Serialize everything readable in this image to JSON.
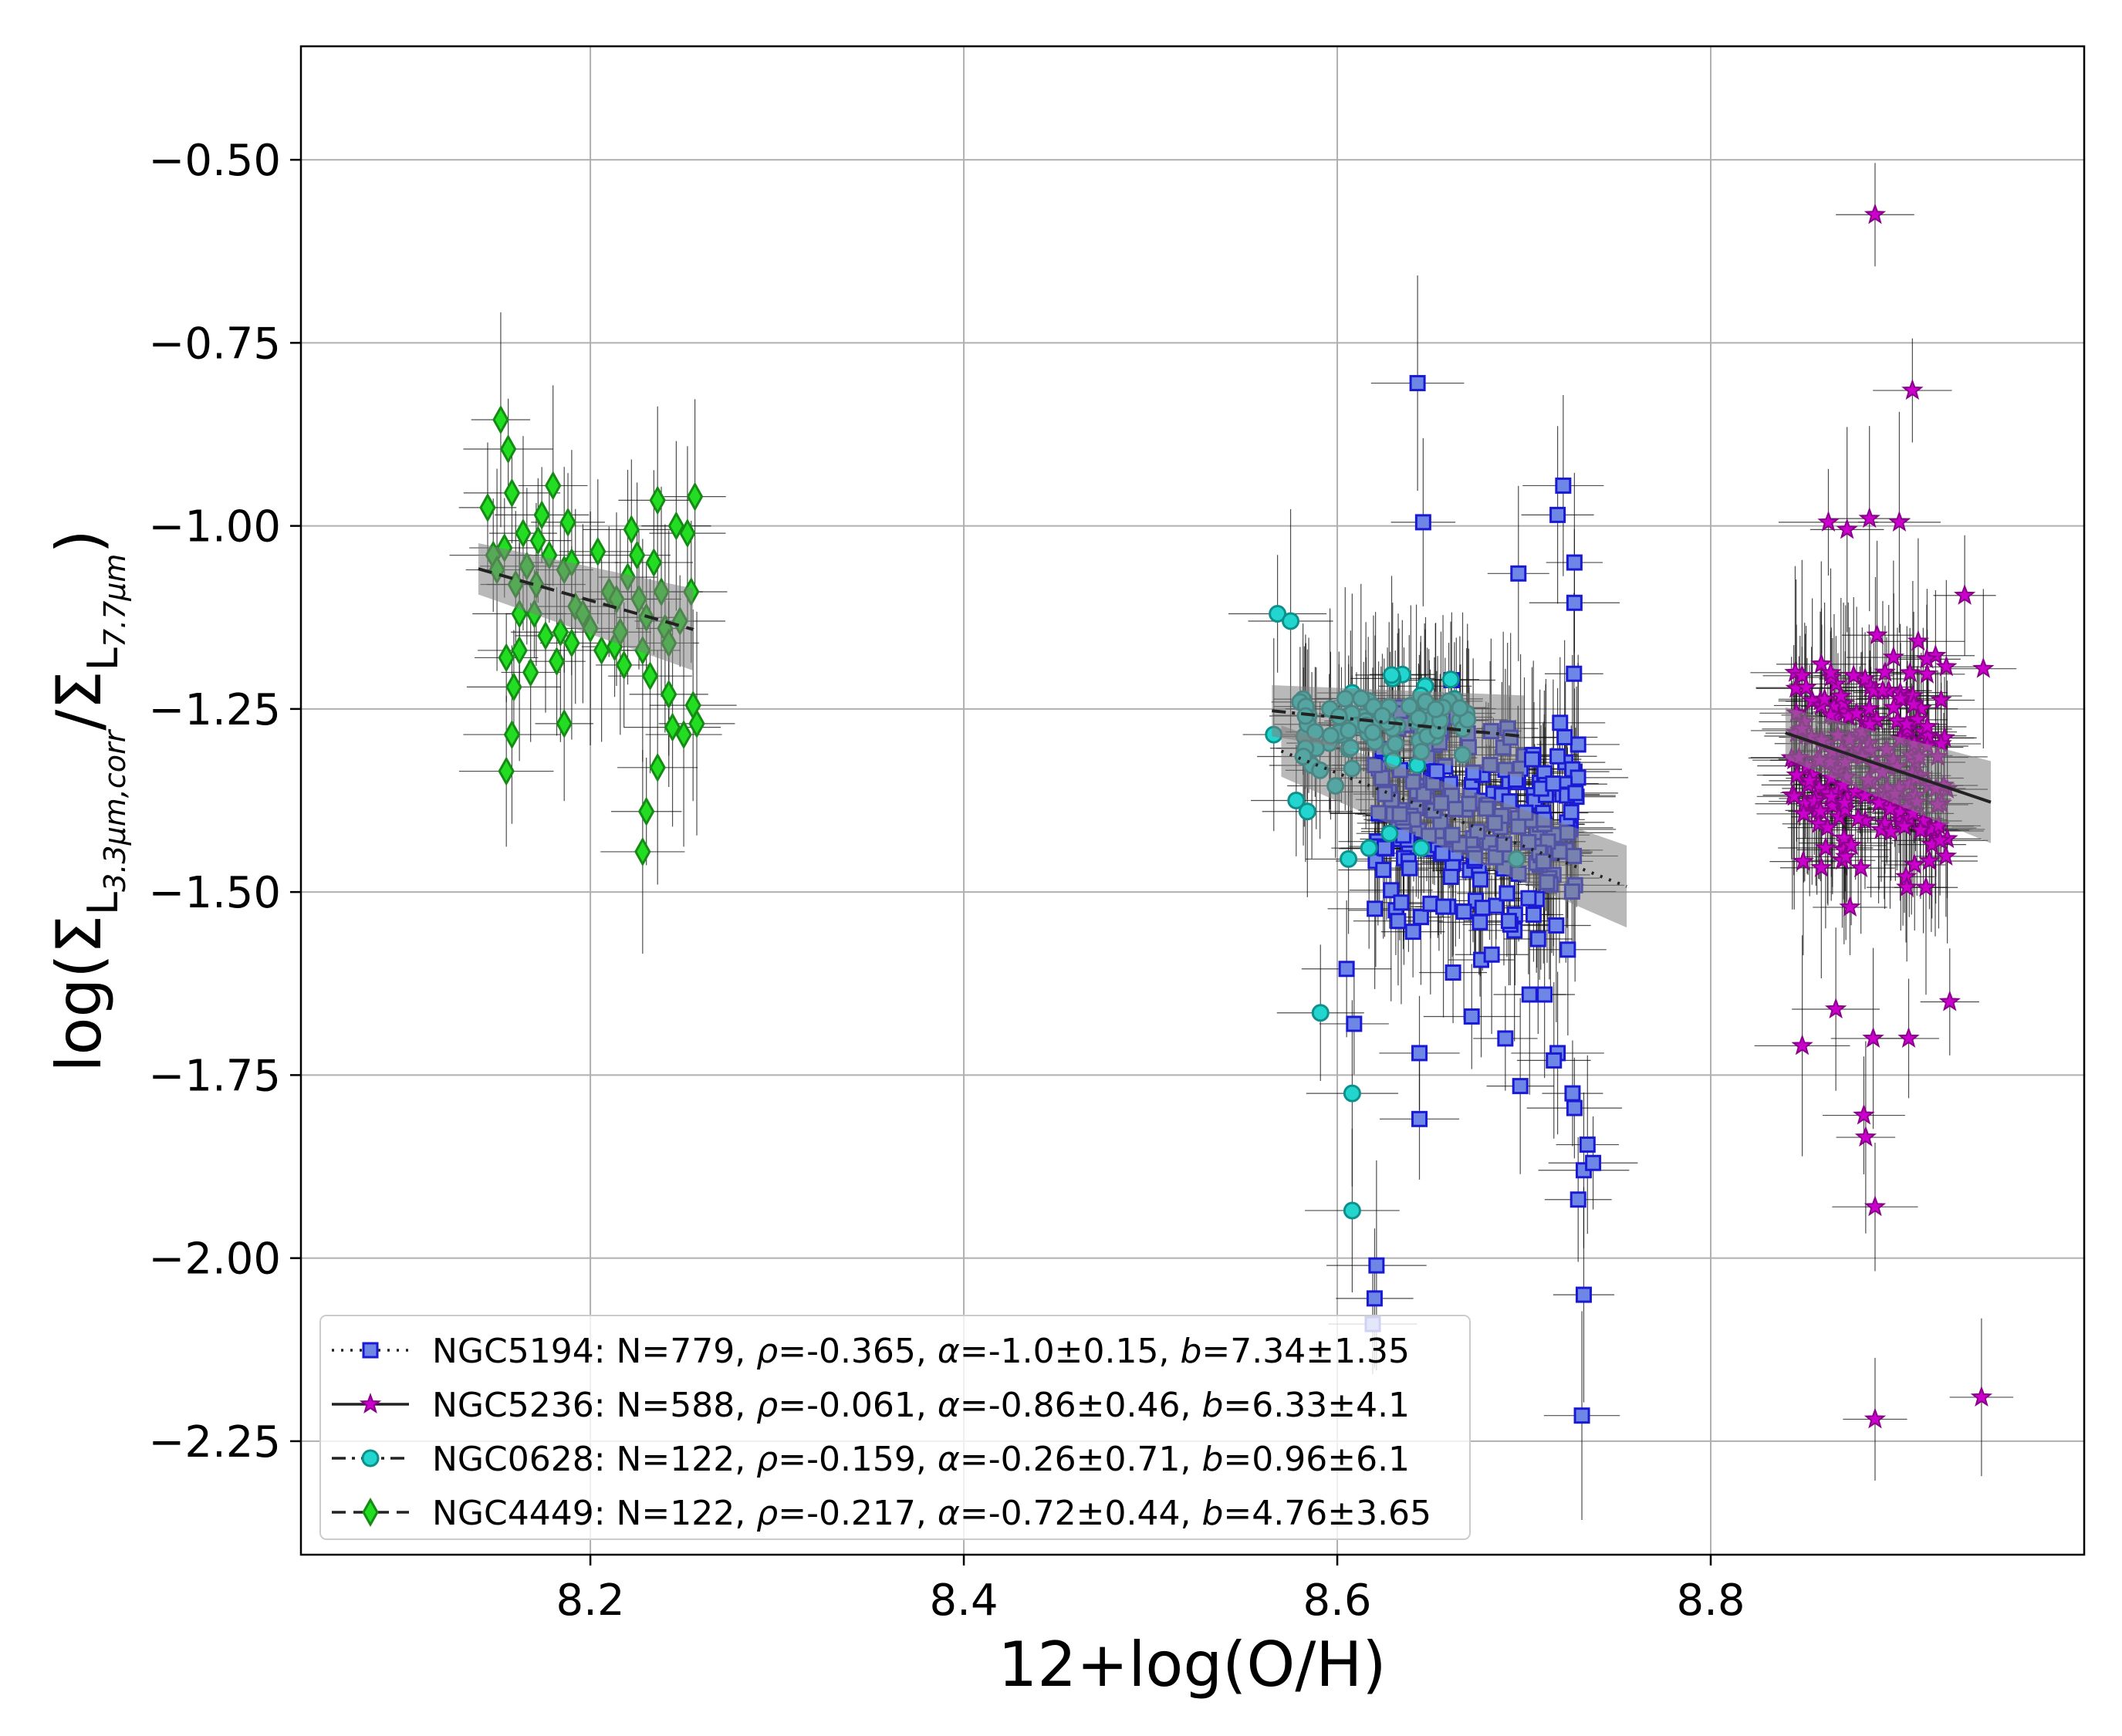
{
  "chart_data": {
    "type": "scatter",
    "title": "",
    "xlabel": "12+log(O/H)",
    "ylabel": {
      "prefix": "log(Σ",
      "sub1": "L",
      "subsub1": "3.3μm,corr",
      "mid": "/Σ",
      "sub2": "L",
      "subsub2": "7.7μm",
      "suffix": ")"
    },
    "xlim": [
      8.045,
      9.0
    ],
    "ylim": [
      -2.405,
      -0.345
    ],
    "xticks": [
      8.2,
      8.4,
      8.6,
      8.8
    ],
    "xtick_labels": [
      "8.2",
      "8.4",
      "8.6",
      "8.8"
    ],
    "yticks": [
      -0.5,
      -0.75,
      -1.0,
      -1.25,
      -1.5,
      -1.75,
      -2.0,
      -2.25
    ],
    "ytick_labels": [
      "−0.50",
      "−0.75",
      "−1.00",
      "−1.25",
      "−1.50",
      "−1.75",
      "−2.00",
      "−2.25"
    ],
    "grid": true,
    "legend_position": "lower-left",
    "series": [
      {
        "name": "NGC5194",
        "marker": "square",
        "color": "#6e86e6",
        "edge_color": "#1a1ad4",
        "line_style": "dotted",
        "legend": {
          "galaxy": "NGC5194",
          "N": "N=779",
          "rho": "-0.365",
          "alpha": "-1.0±0.15",
          "b": "7.34±1.35"
        },
        "fit": {
          "slope": -1.0,
          "intercept": 7.34,
          "x_range": [
            8.57,
            8.755
          ]
        },
        "cluster": {
          "x_center": 8.675,
          "x_spread": 0.055,
          "y_center": -1.4,
          "y_spread": 0.16,
          "n_drawn": 220
        },
        "points": [
          [
            8.643,
            -0.805
          ],
          [
            8.646,
            -0.995
          ],
          [
            8.721,
            -0.945
          ],
          [
            8.718,
            -0.985
          ],
          [
            8.697,
            -1.065
          ],
          [
            8.727,
            -1.05
          ],
          [
            8.727,
            -1.105
          ],
          [
            8.605,
            -1.605
          ],
          [
            8.609,
            -1.68
          ],
          [
            8.644,
            -1.72
          ],
          [
            8.644,
            -1.81
          ],
          [
            8.662,
            -1.61
          ],
          [
            8.672,
            -1.67
          ],
          [
            8.69,
            -1.7
          ],
          [
            8.698,
            -1.765
          ],
          [
            8.711,
            -1.64
          ],
          [
            8.718,
            -1.72
          ],
          [
            8.726,
            -1.775
          ],
          [
            8.729,
            -1.92
          ],
          [
            8.727,
            -1.795
          ],
          [
            8.732,
            -1.88
          ],
          [
            8.737,
            -1.87
          ],
          [
            8.734,
            -1.845
          ],
          [
            8.716,
            -1.73
          ],
          [
            8.703,
            -1.64
          ],
          [
            8.621,
            -2.01
          ],
          [
            8.62,
            -2.055
          ],
          [
            8.619,
            -2.09
          ],
          [
            8.732,
            -2.05
          ],
          [
            8.731,
            -2.215
          ]
        ]
      },
      {
        "name": "NGC5236",
        "marker": "star",
        "color": "#cc00cc",
        "edge_color": "#8a008a",
        "line_style": "solid",
        "legend": {
          "galaxy": "NGC5236",
          "N": "N=588",
          "rho": "-0.061",
          "alpha": "-0.86±0.46",
          "b": "6.33±4.1"
        },
        "fit": {
          "slope": -0.86,
          "intercept": 6.33,
          "x_range": [
            8.84,
            8.95
          ]
        },
        "cluster": {
          "x_center": 8.885,
          "x_spread": 0.042,
          "y_center": -1.33,
          "y_spread": 0.15,
          "n_drawn": 200
        },
        "points": [
          [
            8.888,
            -0.575
          ],
          [
            8.908,
            -0.815
          ],
          [
            8.863,
            -0.995
          ],
          [
            8.873,
            -1.005
          ],
          [
            8.885,
            -0.99
          ],
          [
            8.901,
            -0.995
          ],
          [
            8.936,
            -1.095
          ],
          [
            8.946,
            -1.195
          ],
          [
            8.849,
            -1.71
          ],
          [
            8.867,
            -1.66
          ],
          [
            8.887,
            -1.7
          ],
          [
            8.906,
            -1.7
          ],
          [
            8.928,
            -1.65
          ],
          [
            8.882,
            -1.805
          ],
          [
            8.883,
            -1.835
          ],
          [
            8.888,
            -1.93
          ],
          [
            8.888,
            -2.22
          ],
          [
            8.945,
            -2.19
          ]
        ]
      },
      {
        "name": "NGC0628",
        "marker": "circle",
        "color": "#22d6cf",
        "edge_color": "#0e8f8a",
        "line_style": "dashdot",
        "legend": {
          "galaxy": "NGC0628",
          "N": "N=122",
          "rho": "-0.159",
          "alpha": "-0.26±0.71",
          "b": "0.96±6.1"
        },
        "fit": {
          "slope": -0.26,
          "intercept": 0.96,
          "x_range": [
            8.565,
            8.7
          ]
        },
        "cluster": {
          "x_center": 8.625,
          "x_spread": 0.045,
          "y_center": -1.27,
          "y_spread": 0.06,
          "n_drawn": 80
        },
        "points": [
          [
            8.568,
            -1.12
          ],
          [
            8.575,
            -1.13
          ],
          [
            8.566,
            -1.285
          ],
          [
            8.578,
            -1.375
          ],
          [
            8.584,
            -1.39
          ],
          [
            8.599,
            -1.355
          ],
          [
            8.606,
            -1.455
          ],
          [
            8.617,
            -1.44
          ],
          [
            8.628,
            -1.42
          ],
          [
            8.645,
            -1.44
          ],
          [
            8.696,
            -1.455
          ],
          [
            8.591,
            -1.665
          ],
          [
            8.608,
            -1.775
          ],
          [
            8.608,
            -1.935
          ]
        ]
      },
      {
        "name": "NGC4449",
        "marker": "diamond",
        "color": "#22dd22",
        "edge_color": "#158a15",
        "line_style": "dashed",
        "legend": {
          "galaxy": "NGC4449",
          "N": "N=122",
          "rho": "-0.217",
          "alpha": "-0.72±0.44",
          "b": "4.76±3.65"
        },
        "fit": {
          "slope": -0.72,
          "intercept": 4.76,
          "x_range": [
            8.14,
            8.255
          ]
        },
        "points": [
          [
            8.145,
            -0.975
          ],
          [
            8.148,
            -1.04
          ],
          [
            8.152,
            -0.855
          ],
          [
            8.154,
            -1.03
          ],
          [
            8.156,
            -0.895
          ],
          [
            8.158,
            -0.955
          ],
          [
            8.16,
            -1.08
          ],
          [
            8.162,
            -1.17
          ],
          [
            8.155,
            -1.18
          ],
          [
            8.159,
            -1.22
          ],
          [
            8.158,
            -1.285
          ],
          [
            8.155,
            -1.335
          ],
          [
            8.164,
            -1.01
          ],
          [
            8.166,
            -1.055
          ],
          [
            8.17,
            -1.12
          ],
          [
            8.171,
            -1.08
          ],
          [
            8.174,
            -0.985
          ],
          [
            8.178,
            -1.04
          ],
          [
            8.18,
            -0.945
          ],
          [
            8.182,
            -1.185
          ],
          [
            8.184,
            -1.145
          ],
          [
            8.186,
            -1.06
          ],
          [
            8.188,
            -0.995
          ],
          [
            8.19,
            -1.05
          ],
          [
            8.192,
            -1.11
          ],
          [
            8.186,
            -1.27
          ],
          [
            8.204,
            -1.035
          ],
          [
            8.21,
            -1.09
          ],
          [
            8.213,
            -1.165
          ],
          [
            8.216,
            -1.145
          ],
          [
            8.22,
            -1.07
          ],
          [
            8.222,
            -1.005
          ],
          [
            8.225,
            -1.04
          ],
          [
            8.226,
            -1.1
          ],
          [
            8.228,
            -1.17
          ],
          [
            8.23,
            -1.125
          ],
          [
            8.232,
            -1.205
          ],
          [
            8.234,
            -1.05
          ],
          [
            8.236,
            -0.965
          ],
          [
            8.238,
            -1.09
          ],
          [
            8.24,
            -1.14
          ],
          [
            8.242,
            -1.23
          ],
          [
            8.244,
            -1.275
          ],
          [
            8.246,
            -1.0
          ],
          [
            8.248,
            -1.13
          ],
          [
            8.25,
            -1.285
          ],
          [
            8.252,
            -1.01
          ],
          [
            8.254,
            -1.09
          ],
          [
            8.255,
            -1.245
          ],
          [
            8.256,
            -0.96
          ],
          [
            8.257,
            -1.27
          ],
          [
            8.23,
            -1.39
          ],
          [
            8.228,
            -1.445
          ],
          [
            8.236,
            -1.33
          ],
          [
            8.2,
            -1.14
          ],
          [
            8.168,
            -1.2
          ],
          [
            8.176,
            -1.15
          ],
          [
            8.196,
            -1.12
          ],
          [
            8.206,
            -1.17
          ],
          [
            8.218,
            -1.19
          ],
          [
            8.242,
            -1.16
          ],
          [
            8.15,
            -1.06
          ],
          [
            8.162,
            -1.12
          ],
          [
            8.172,
            -1.02
          ],
          [
            8.19,
            -1.16
          ],
          [
            8.214,
            -1.1
          ]
        ]
      }
    ]
  }
}
